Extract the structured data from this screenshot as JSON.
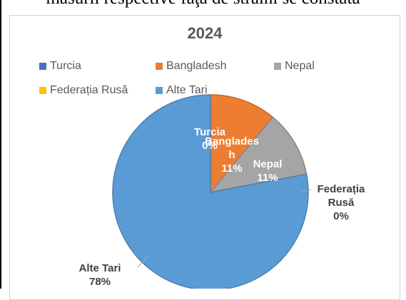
{
  "page": {
    "top_text": "măsurii respective faţă de străini se constată"
  },
  "chart_data": {
    "type": "pie",
    "title": "2024",
    "legend_placement": "top",
    "categories": [
      "Turcia",
      "Bangladesh",
      "Nepal",
      "Federația Rusă",
      "Alte Tari"
    ],
    "values": [
      0,
      11,
      11,
      0,
      78
    ],
    "value_labels": [
      "0%",
      "11%",
      "11%",
      "0%",
      "78%"
    ],
    "colors": [
      "#4472c4",
      "#ed7d31",
      "#a5a5a5",
      "#ffc000",
      "#5b9bd5"
    ],
    "data_labels": [
      {
        "name": "Turcia",
        "value": "0%"
      },
      {
        "name": "Banglades h",
        "value": "11%"
      },
      {
        "name": "Nepal",
        "value": "11%"
      },
      {
        "name": "Federația Rusă",
        "value": "0%"
      },
      {
        "name": "Alte Tari",
        "value": "78%"
      }
    ]
  }
}
